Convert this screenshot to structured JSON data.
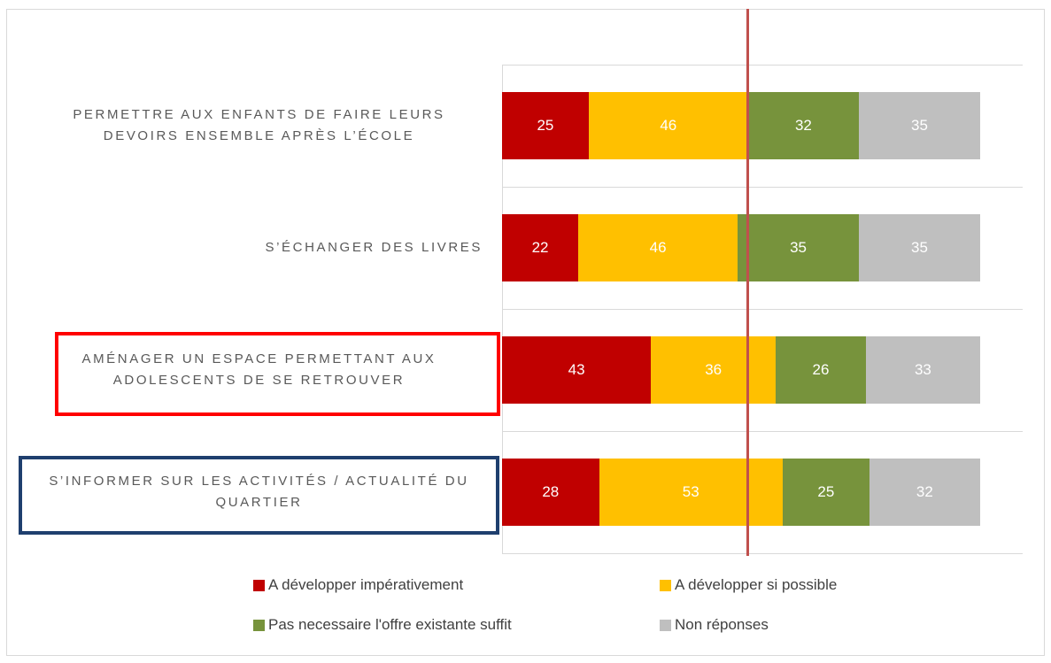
{
  "chart_data": {
    "type": "stacked-bar-horizontal",
    "categories": [
      "PERMETTRE AUX ENFANTS DE FAIRE LEURS DEVOIRS ENSEMBLE APRÈS L’ÉCOLE",
      "S’ÉCHANGER DES LIVRES",
      "AMÉNAGER UN ESPACE PERMETTANT AUX ADOLESCENTS DE SE RETROUVER",
      "S’INFORMER SUR LES ACTIVITÉS / ACTUALITÉ DU QUARTIER"
    ],
    "series": [
      {
        "name": "A développer impérativement",
        "color": "#c00000",
        "values": [
          25,
          22,
          43,
          28
        ]
      },
      {
        "name": "A développer si possible",
        "color": "#ffc000",
        "values": [
          46,
          46,
          36,
          53
        ]
      },
      {
        "name": "Pas necessaire l'offre existante suffit",
        "color": "#77933c",
        "values": [
          32,
          35,
          26,
          25
        ]
      },
      {
        "name": "Non réponses",
        "color": "#bfbfbf",
        "values": [
          35,
          35,
          33,
          32
        ]
      }
    ],
    "xlim": [
      0,
      138
    ]
  }
}
